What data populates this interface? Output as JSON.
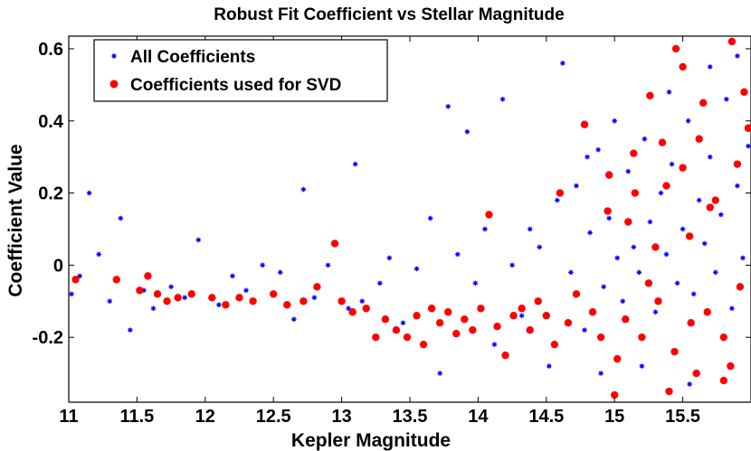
{
  "chart_data": {
    "type": "scatter",
    "title": "Robust Fit Coefficient vs Stellar Magnitude",
    "xlabel": "Kepler Magnitude",
    "ylabel": "Coefficient Value",
    "xlim": [
      11,
      16
    ],
    "ylim": [
      -0.38,
      0.635
    ],
    "xticks": [
      11,
      11.5,
      12,
      12.5,
      13,
      13.5,
      14,
      14.5,
      15,
      15.5
    ],
    "xtick_labels": [
      "11",
      "11.5",
      "12",
      "12.5",
      "13",
      "13.5",
      "14",
      "14.5",
      "15",
      "15.5"
    ],
    "yticks": [
      -0.2,
      0,
      0.2,
      0.4,
      0.6
    ],
    "ytick_labels": [
      "-0.2",
      "0",
      "0.2",
      "0.4",
      "0.6"
    ],
    "grid": false,
    "legend_position": "top-left",
    "colors": {
      "all": "#0000ff",
      "svd": "#ff0000"
    },
    "series": [
      {
        "name": "All Coefficients",
        "marker": "asterisk",
        "points": [
          [
            11.02,
            -0.08
          ],
          [
            11.08,
            -0.03
          ],
          [
            11.15,
            0.2
          ],
          [
            11.22,
            0.03
          ],
          [
            11.3,
            -0.1
          ],
          [
            11.38,
            0.13
          ],
          [
            11.45,
            -0.18
          ],
          [
            11.55,
            -0.07
          ],
          [
            11.62,
            -0.12
          ],
          [
            11.75,
            -0.06
          ],
          [
            11.85,
            -0.09
          ],
          [
            11.95,
            0.07
          ],
          [
            12.1,
            -0.11
          ],
          [
            12.2,
            -0.03
          ],
          [
            12.3,
            -0.07
          ],
          [
            12.42,
            0.0
          ],
          [
            12.55,
            -0.02
          ],
          [
            12.65,
            -0.15
          ],
          [
            12.72,
            0.21
          ],
          [
            12.8,
            -0.09
          ],
          [
            12.9,
            0.0
          ],
          [
            13.05,
            -0.12
          ],
          [
            13.1,
            0.28
          ],
          [
            13.15,
            -0.1
          ],
          [
            13.28,
            -0.05
          ],
          [
            13.35,
            0.02
          ],
          [
            13.45,
            -0.16
          ],
          [
            13.55,
            -0.01
          ],
          [
            13.65,
            0.13
          ],
          [
            13.72,
            -0.3
          ],
          [
            13.78,
            0.44
          ],
          [
            13.85,
            0.03
          ],
          [
            13.92,
            0.37
          ],
          [
            13.98,
            -0.05
          ],
          [
            14.05,
            0.1
          ],
          [
            14.12,
            -0.22
          ],
          [
            14.18,
            0.46
          ],
          [
            14.25,
            0.0
          ],
          [
            14.32,
            -0.14
          ],
          [
            14.38,
            0.1
          ],
          [
            14.45,
            0.05
          ],
          [
            14.52,
            -0.28
          ],
          [
            14.58,
            0.18
          ],
          [
            14.62,
            0.56
          ],
          [
            14.68,
            -0.02
          ],
          [
            14.72,
            0.22
          ],
          [
            14.78,
            -0.18
          ],
          [
            14.82,
            0.09
          ],
          [
            14.88,
            0.32
          ],
          [
            14.92,
            -0.06
          ],
          [
            14.96,
            0.13
          ],
          [
            15.02,
            0.02
          ],
          [
            15.06,
            -0.1
          ],
          [
            15.1,
            0.26
          ],
          [
            15.14,
            0.05
          ],
          [
            15.18,
            -0.02
          ],
          [
            15.22,
            0.35
          ],
          [
            15.26,
            0.12
          ],
          [
            15.3,
            -0.13
          ],
          [
            15.34,
            0.2
          ],
          [
            15.38,
            0.03
          ],
          [
            15.42,
            0.28
          ],
          [
            15.46,
            -0.05
          ],
          [
            15.5,
            0.1
          ],
          [
            15.54,
            0.4
          ],
          [
            15.58,
            -0.08
          ],
          [
            15.62,
            0.18
          ],
          [
            15.66,
            0.06
          ],
          [
            15.7,
            0.3
          ],
          [
            15.74,
            -0.02
          ],
          [
            15.78,
            0.14
          ],
          [
            15.82,
            0.46
          ],
          [
            15.86,
            -0.12
          ],
          [
            15.9,
            0.22
          ],
          [
            15.94,
            0.02
          ],
          [
            15.98,
            0.33
          ],
          [
            15.2,
            -0.28
          ],
          [
            15.55,
            -0.33
          ],
          [
            14.9,
            -0.3
          ],
          [
            15.7,
            0.55
          ],
          [
            15.9,
            0.58
          ],
          [
            15.4,
            0.48
          ],
          [
            15.0,
            0.4
          ],
          [
            14.8,
            0.3
          ]
        ]
      },
      {
        "name": "Coefficients used for SVD",
        "marker": "circle",
        "points": [
          [
            11.05,
            -0.04
          ],
          [
            11.35,
            -0.04
          ],
          [
            11.52,
            -0.07
          ],
          [
            11.58,
            -0.03
          ],
          [
            11.65,
            -0.08
          ],
          [
            11.72,
            -0.1
          ],
          [
            11.8,
            -0.09
          ],
          [
            11.9,
            -0.08
          ],
          [
            12.05,
            -0.09
          ],
          [
            12.15,
            -0.11
          ],
          [
            12.25,
            -0.09
          ],
          [
            12.35,
            -0.1
          ],
          [
            12.5,
            -0.08
          ],
          [
            12.6,
            -0.11
          ],
          [
            12.72,
            -0.1
          ],
          [
            12.82,
            -0.06
          ],
          [
            12.95,
            0.06
          ],
          [
            13.0,
            -0.1
          ],
          [
            13.08,
            -0.13
          ],
          [
            13.18,
            -0.12
          ],
          [
            13.25,
            -0.2
          ],
          [
            13.32,
            -0.15
          ],
          [
            13.4,
            -0.18
          ],
          [
            13.48,
            -0.2
          ],
          [
            13.55,
            -0.14
          ],
          [
            13.6,
            -0.22
          ],
          [
            13.66,
            -0.12
          ],
          [
            13.72,
            -0.16
          ],
          [
            13.78,
            -0.13
          ],
          [
            13.84,
            -0.19
          ],
          [
            13.9,
            -0.15
          ],
          [
            13.96,
            -0.18
          ],
          [
            14.02,
            -0.12
          ],
          [
            14.08,
            0.14
          ],
          [
            14.14,
            -0.17
          ],
          [
            14.2,
            -0.25
          ],
          [
            14.26,
            -0.14
          ],
          [
            14.32,
            -0.12
          ],
          [
            14.38,
            -0.18
          ],
          [
            14.44,
            -0.1
          ],
          [
            14.5,
            -0.14
          ],
          [
            14.56,
            -0.22
          ],
          [
            14.6,
            0.2
          ],
          [
            14.66,
            -0.16
          ],
          [
            14.72,
            -0.08
          ],
          [
            14.78,
            0.39
          ],
          [
            14.84,
            -0.13
          ],
          [
            14.9,
            -0.2
          ],
          [
            14.96,
            0.25
          ],
          [
            15.02,
            -0.26
          ],
          [
            15.08,
            -0.15
          ],
          [
            15.14,
            0.31
          ],
          [
            15.2,
            -0.2
          ],
          [
            15.26,
            0.47
          ],
          [
            15.32,
            -0.1
          ],
          [
            15.38,
            0.22
          ],
          [
            15.44,
            -0.24
          ],
          [
            15.5,
            0.55
          ],
          [
            15.56,
            -0.16
          ],
          [
            15.62,
            0.35
          ],
          [
            15.68,
            -0.13
          ],
          [
            15.74,
            0.18
          ],
          [
            15.8,
            -0.2
          ],
          [
            15.86,
            0.62
          ],
          [
            15.92,
            -0.06
          ],
          [
            15.98,
            0.38
          ],
          [
            15.1,
            0.12
          ],
          [
            15.3,
            0.05
          ],
          [
            15.5,
            0.27
          ],
          [
            15.7,
            0.16
          ],
          [
            15.9,
            0.28
          ],
          [
            15.6,
            -0.3
          ],
          [
            15.4,
            -0.35
          ],
          [
            15.8,
            -0.32
          ],
          [
            15.0,
            -0.36
          ],
          [
            15.15,
            0.2
          ],
          [
            15.45,
            0.6
          ],
          [
            15.95,
            0.48
          ],
          [
            15.25,
            -0.05
          ],
          [
            15.55,
            0.08
          ],
          [
            15.85,
            -0.28
          ],
          [
            15.65,
            0.45
          ],
          [
            14.95,
            0.15
          ],
          [
            15.35,
            0.34
          ]
        ]
      }
    ]
  }
}
